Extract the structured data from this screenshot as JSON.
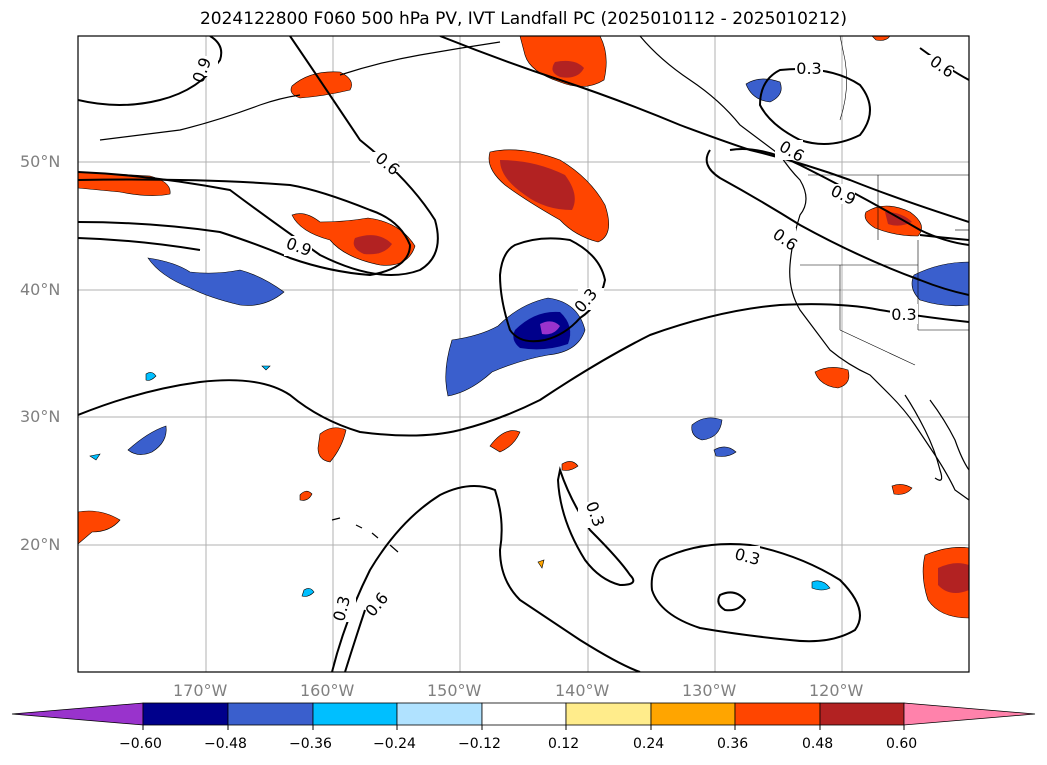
{
  "title": "2024122800 F060 500 hPa PV, IVT Landfall PC (2025010112 - 2025010212)",
  "lat_labels": [
    "50°N",
    "40°N",
    "30°N",
    "20°N"
  ],
  "lon_labels": [
    "170°W",
    "160°W",
    "150°W",
    "140°W",
    "130°W",
    "120°W"
  ],
  "contour_labels": [
    "0.9",
    "0.6",
    "0.9",
    "0.6",
    "0.3",
    "0.6",
    "0.9",
    "0.6",
    "0.3",
    "0.3",
    "0.3",
    "0.3",
    "0.3",
    "0.6",
    "0.6"
  ],
  "colorbar": {
    "ticks": [
      "−0.60",
      "−0.48",
      "−0.36",
      "−0.24",
      "−0.12",
      "0.12",
      "0.24",
      "0.36",
      "0.48",
      "0.60"
    ],
    "colors": [
      "#9933cc",
      "#00008b",
      "#3a5fcd",
      "#00bfff",
      "#b0e2ff",
      "#ffffff",
      "#ffec8b",
      "#ffa500",
      "#ff4500",
      "#b22222",
      "#ff82ab"
    ]
  }
}
